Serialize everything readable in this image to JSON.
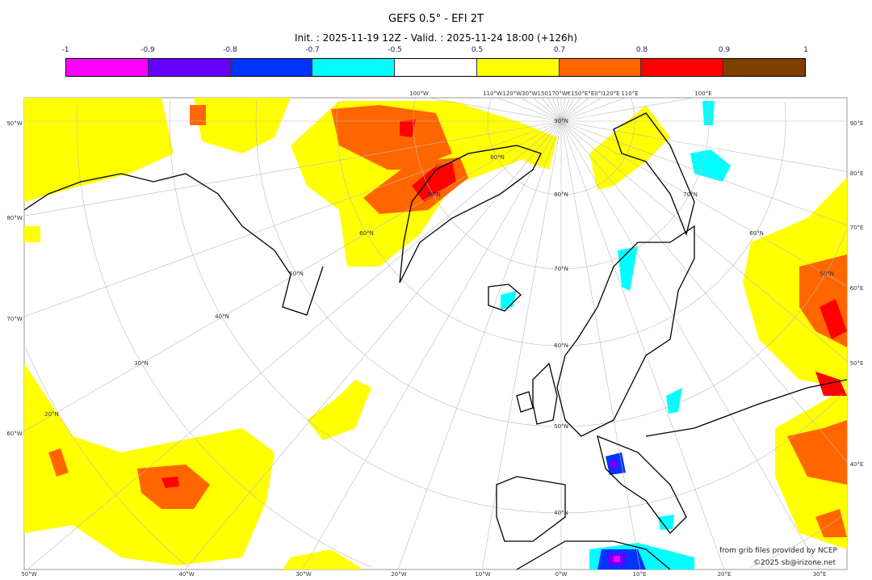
{
  "title": "GEFS 0.5° - EFI 2T",
  "subtitle": "Init. : 2025-11-19 12Z - Valid. : 2025-11-24 18:00 (+126h)",
  "colorbar": {
    "ticks": [
      "-1",
      "-0.9",
      "-0.8",
      "-0.7",
      "-0.5",
      "0.5",
      "0.7",
      "0.8",
      "0.9",
      "1"
    ],
    "colors": [
      "#ff00ff",
      "#6600ff",
      "#0033ff",
      "#00ffff",
      "#ffffff",
      "#ffff00",
      "#ff6600",
      "#ff0000",
      "#7f3f00"
    ]
  },
  "axes": {
    "left": [
      "90°W",
      "80°W",
      "70°W",
      "60°W"
    ],
    "right": [
      "90°E",
      "80°E",
      "70°E",
      "60°E",
      "50°E",
      "40°E"
    ],
    "bottom": [
      "50°W",
      "40°W",
      "30°W",
      "20°W",
      "10°W",
      "0°W",
      "10°E",
      "20°E",
      "30°E"
    ],
    "top": [
      "100°W",
      "110°W",
      "120°W30°W150170°W€150°E°E0°I120°E",
      "110°E",
      "100°E"
    ]
  },
  "lat_labels": [
    "90°N",
    "80°N",
    "70°N",
    "60°N",
    "50°N",
    "40°N",
    "80°N",
    "70°N",
    "60°N",
    "50°N",
    "40°N",
    "30°N",
    "20°N",
    "70°N",
    "60°N",
    "50°N"
  ],
  "credits": {
    "source": "from grib files provided by NCEP",
    "copyright": "©2025 sb@irizone.net"
  }
}
